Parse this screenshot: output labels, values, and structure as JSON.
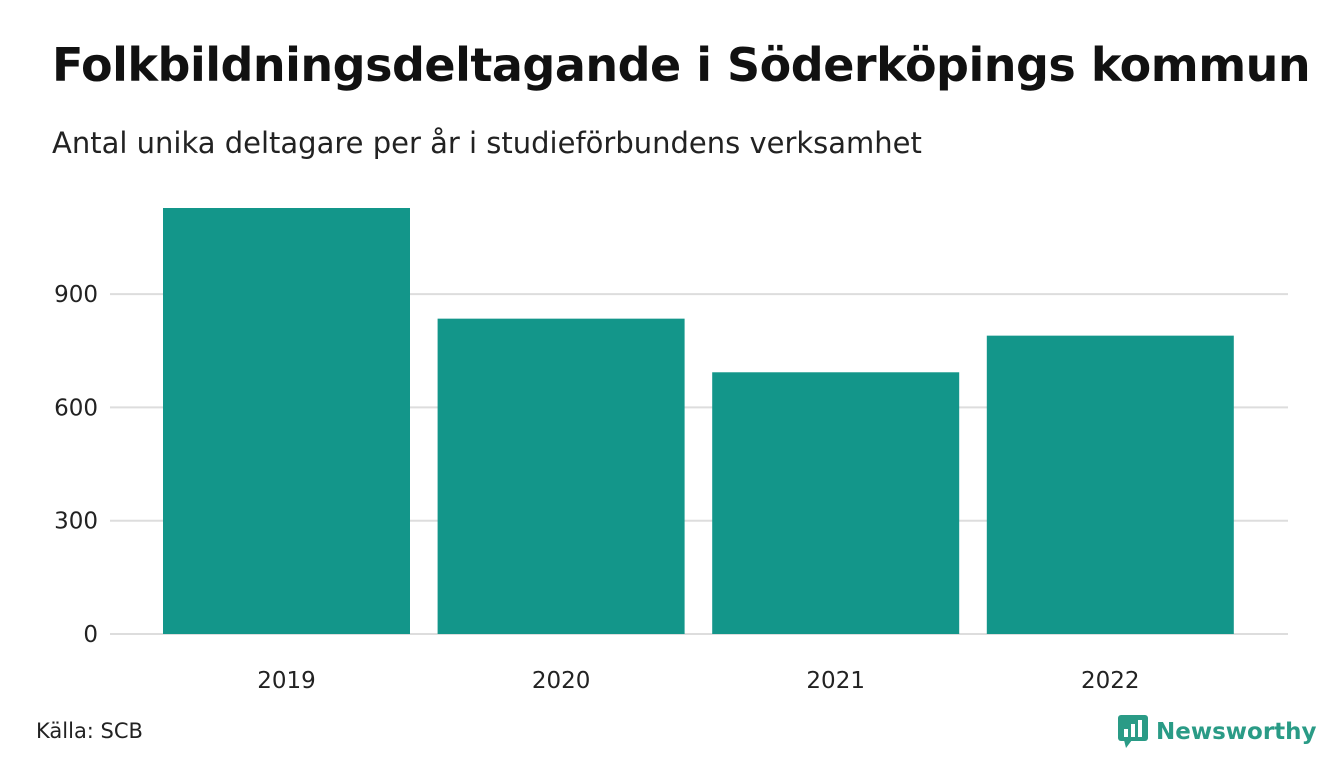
{
  "title": "Folkbildningsdeltagande i Söderköpings kommun",
  "subtitle": "Antal unika deltagare per år i studieförbundens verksamhet",
  "source": "Källa: SCB",
  "brand": {
    "name": "Newsworthy",
    "icon": "newsworthy-logo-icon"
  },
  "colors": {
    "bar": "#13968a",
    "grid": "#dddddd",
    "brand": "#2a9b86"
  },
  "chart_data": {
    "type": "bar",
    "categories": [
      "2019",
      "2020",
      "2021",
      "2022"
    ],
    "values": [
      1128,
      835,
      693,
      790
    ],
    "ylim": [
      0,
      1128
    ],
    "yticks": [
      0,
      300,
      600,
      900
    ],
    "ytick_labels": [
      "0",
      "300",
      "600",
      "900"
    ],
    "grid": true,
    "legend": "none"
  }
}
